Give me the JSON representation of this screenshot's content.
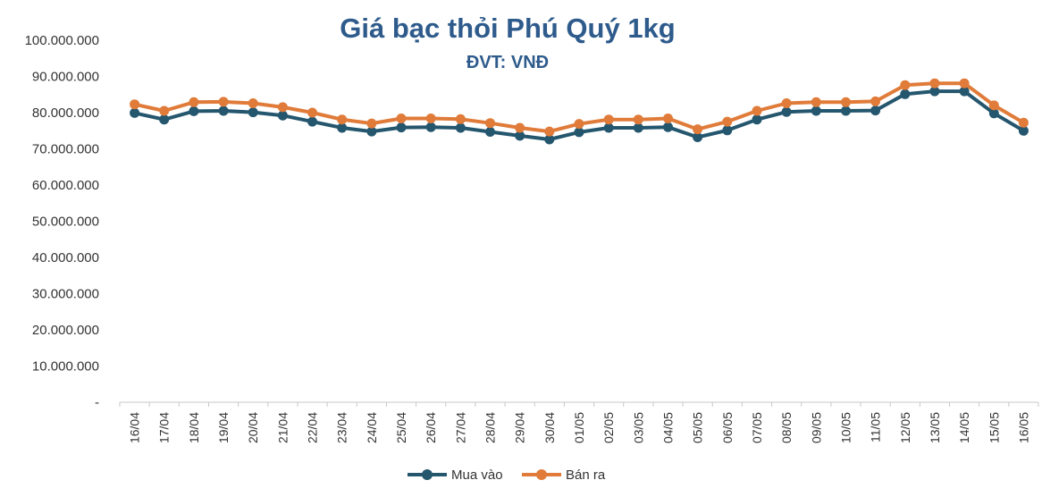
{
  "chart_data": {
    "type": "line",
    "title": "Giá bạc thỏi Phú Quý 1kg",
    "subtitle": "ĐVT: VNĐ",
    "categories": [
      "16/04",
      "17/04",
      "18/04",
      "19/04",
      "20/04",
      "21/04",
      "22/04",
      "23/04",
      "24/04",
      "25/04",
      "26/04",
      "27/04",
      "28/04",
      "29/04",
      "30/04",
      "01/05",
      "02/05",
      "03/05",
      "04/05",
      "05/05",
      "06/05",
      "07/05",
      "08/05",
      "09/05",
      "10/05",
      "11/05",
      "12/05",
      "13/05",
      "14/05",
      "15/05",
      "16/05"
    ],
    "y_ticks": [
      "-",
      "10.000.000",
      "20.000.000",
      "30.000.000",
      "40.000.000",
      "50.000.000",
      "60.000.000",
      "70.000.000",
      "80.000.000",
      "90.000.000",
      "100.000.000"
    ],
    "ylim": [
      0,
      100000000
    ],
    "grid": false,
    "legend_position": "bottom",
    "series": [
      {
        "name": "Mua vào",
        "color": "#24566e",
        "values": [
          79900000,
          78100000,
          80400000,
          80500000,
          80100000,
          79200000,
          77500000,
          75800000,
          74800000,
          75900000,
          76000000,
          75800000,
          74700000,
          73600000,
          72600000,
          74600000,
          75800000,
          75800000,
          76000000,
          73200000,
          75100000,
          78100000,
          80200000,
          80500000,
          80500000,
          80600000,
          85100000,
          85900000,
          85900000,
          79800000,
          75000000
        ]
      },
      {
        "name": "Bán ra",
        "color": "#e07b39",
        "values": [
          82300000,
          80500000,
          82900000,
          83000000,
          82600000,
          81500000,
          80000000,
          78100000,
          77000000,
          78400000,
          78400000,
          78200000,
          77100000,
          75800000,
          74800000,
          76900000,
          78100000,
          78100000,
          78400000,
          75400000,
          77500000,
          80500000,
          82600000,
          82900000,
          82900000,
          83100000,
          87600000,
          88100000,
          88100000,
          82000000,
          77200000
        ]
      }
    ]
  }
}
